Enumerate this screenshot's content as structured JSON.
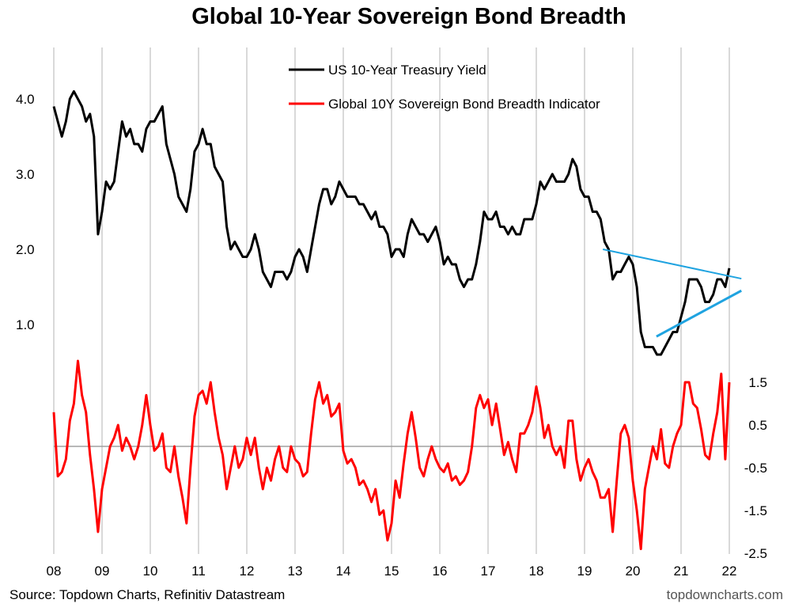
{
  "chart_data": {
    "type": "line",
    "title": "Global 10-Year Sovereign Bond Breadth",
    "source": "Source: Topdown Charts, Refinitiv Datastream",
    "watermark": "topdowncharts.com",
    "x_ticks": [
      "08",
      "09",
      "10",
      "11",
      "12",
      "13",
      "14",
      "15",
      "16",
      "17",
      "18",
      "19",
      "20",
      "21",
      "22"
    ],
    "x_start_year": 2008,
    "left_axis": {
      "ticks": [
        "4.0",
        "3.0",
        "2.0",
        "1.0"
      ],
      "tick_values": [
        4,
        3,
        2,
        1
      ],
      "range": [
        0.0,
        4.3
      ]
    },
    "right_axis": {
      "ticks": [
        "1.5",
        "0.5",
        "-0.5",
        "-1.5",
        "-2.5"
      ],
      "tick_values": [
        1.5,
        0.5,
        -0.5,
        -1.5,
        -2.5
      ],
      "range": [
        -2.5,
        2.0
      ]
    },
    "grid": "vertical",
    "legend_position": "top-center",
    "series": [
      {
        "name": "US 10-Year Treasury Yield",
        "color": "#000000",
        "axis": "left",
        "frequency": "monthly",
        "values": [
          3.9,
          3.7,
          3.5,
          3.7,
          4.0,
          4.1,
          4.0,
          3.9,
          3.7,
          3.8,
          3.5,
          2.2,
          2.5,
          2.9,
          2.8,
          2.9,
          3.3,
          3.7,
          3.5,
          3.6,
          3.4,
          3.4,
          3.3,
          3.6,
          3.7,
          3.7,
          3.8,
          3.9,
          3.4,
          3.2,
          3.0,
          2.7,
          2.6,
          2.5,
          2.8,
          3.3,
          3.4,
          3.6,
          3.4,
          3.4,
          3.1,
          3.0,
          2.9,
          2.3,
          2.0,
          2.1,
          2.0,
          1.9,
          1.9,
          2.0,
          2.2,
          2.0,
          1.7,
          1.6,
          1.5,
          1.7,
          1.7,
          1.7,
          1.6,
          1.7,
          1.9,
          2.0,
          1.9,
          1.7,
          2.0,
          2.3,
          2.6,
          2.8,
          2.8,
          2.6,
          2.7,
          2.9,
          2.8,
          2.7,
          2.7,
          2.7,
          2.6,
          2.6,
          2.5,
          2.4,
          2.5,
          2.3,
          2.3,
          2.2,
          1.9,
          2.0,
          2.0,
          1.9,
          2.2,
          2.4,
          2.3,
          2.2,
          2.2,
          2.1,
          2.2,
          2.3,
          2.1,
          1.8,
          1.9,
          1.8,
          1.8,
          1.6,
          1.5,
          1.6,
          1.6,
          1.8,
          2.1,
          2.5,
          2.4,
          2.4,
          2.5,
          2.3,
          2.3,
          2.2,
          2.3,
          2.2,
          2.2,
          2.4,
          2.4,
          2.4,
          2.6,
          2.9,
          2.8,
          2.9,
          3.0,
          2.9,
          2.9,
          2.9,
          3.0,
          3.2,
          3.1,
          2.8,
          2.7,
          2.7,
          2.5,
          2.5,
          2.4,
          2.1,
          2.0,
          1.6,
          1.7,
          1.7,
          1.8,
          1.9,
          1.8,
          1.5,
          0.9,
          0.7,
          0.7,
          0.7,
          0.6,
          0.6,
          0.7,
          0.8,
          0.9,
          0.9,
          1.1,
          1.3,
          1.6,
          1.6,
          1.6,
          1.5,
          1.3,
          1.3,
          1.4,
          1.6,
          1.6,
          1.5,
          1.75
        ]
      },
      {
        "name": "Global 10Y Sovereign Bond Breadth Indicator",
        "color": "#ff0000",
        "axis": "right",
        "frequency": "monthly",
        "values": [
          0.8,
          -0.7,
          -0.6,
          -0.3,
          0.6,
          1.0,
          2.0,
          1.2,
          0.8,
          -0.2,
          -1.0,
          -2.0,
          -1.0,
          -0.5,
          0.0,
          0.2,
          0.5,
          -0.1,
          0.2,
          0.0,
          -0.3,
          0.0,
          0.5,
          1.2,
          0.5,
          -0.1,
          0.0,
          0.3,
          -0.5,
          -0.6,
          0.0,
          -0.7,
          -1.2,
          -1.8,
          -0.5,
          0.7,
          1.2,
          1.3,
          1.0,
          1.5,
          0.8,
          0.2,
          -0.2,
          -1.0,
          -0.5,
          0.0,
          -0.5,
          -0.3,
          0.2,
          -0.2,
          0.2,
          -0.5,
          -1.0,
          -0.5,
          -0.8,
          -0.3,
          0.0,
          -0.5,
          -0.6,
          0.0,
          -0.3,
          -0.4,
          -0.7,
          -0.6,
          0.3,
          1.1,
          1.5,
          1.0,
          1.2,
          0.7,
          0.8,
          1.0,
          -0.1,
          -0.4,
          -0.3,
          -0.5,
          -0.9,
          -0.8,
          -1.0,
          -1.3,
          -1.0,
          -1.6,
          -1.5,
          -2.2,
          -1.8,
          -0.8,
          -1.2,
          -0.4,
          0.3,
          0.8,
          0.2,
          -0.5,
          -0.7,
          -0.3,
          0.0,
          -0.3,
          -0.5,
          -0.6,
          -0.4,
          -0.8,
          -0.7,
          -0.9,
          -0.8,
          -0.6,
          0.0,
          0.9,
          1.2,
          0.9,
          1.1,
          0.5,
          1.0,
          0.4,
          -0.2,
          0.1,
          -0.3,
          -0.6,
          0.3,
          0.3,
          0.5,
          0.8,
          1.4,
          0.9,
          0.2,
          0.5,
          0.0,
          -0.2,
          0.0,
          -0.5,
          0.6,
          0.6,
          -0.3,
          -0.8,
          -0.5,
          -0.3,
          -0.6,
          -0.8,
          -1.2,
          -1.2,
          -1.0,
          -2.0,
          -0.8,
          0.3,
          0.5,
          0.2,
          -0.8,
          -1.5,
          -2.4,
          -1.0,
          -0.5,
          0.0,
          -0.3,
          0.4,
          -0.4,
          -0.5,
          0.0,
          0.3,
          0.5,
          1.5,
          1.5,
          1.0,
          0.9,
          0.4,
          -0.2,
          -0.3,
          0.3,
          0.8,
          1.7,
          -0.3,
          1.5
        ]
      }
    ],
    "zero_line": {
      "axis": "right",
      "value": 0,
      "color": "#a0a0a0"
    },
    "trendlines": [
      {
        "color": "#1fa3e0",
        "axis": "left",
        "from": [
          2019.38,
          2.0
        ],
        "to": [
          2022.25,
          1.61
        ]
      },
      {
        "color": "#1fa3e0",
        "axis": "left",
        "from": [
          2020.49,
          0.84
        ],
        "to": [
          2022.25,
          1.45
        ]
      }
    ]
  }
}
